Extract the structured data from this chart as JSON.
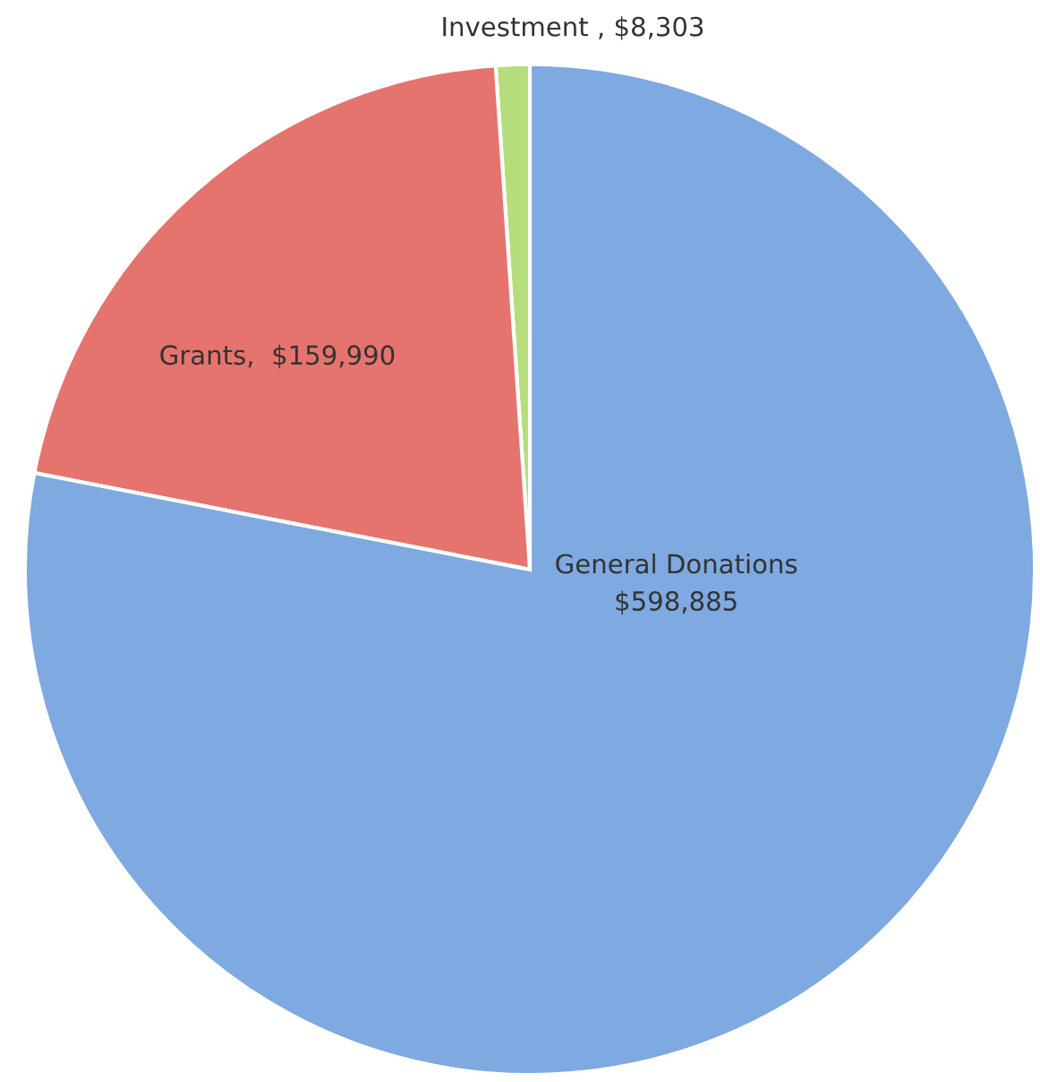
{
  "chart_data": {
    "type": "pie",
    "categories": [
      "General Donations\n$598,885",
      "Grants,  $159,990",
      "Investment , $8,303"
    ],
    "values": [
      598885,
      159990,
      8303
    ],
    "colors": [
      "#7ea9e1",
      "#e6746e",
      "#b6dd7c"
    ]
  }
}
